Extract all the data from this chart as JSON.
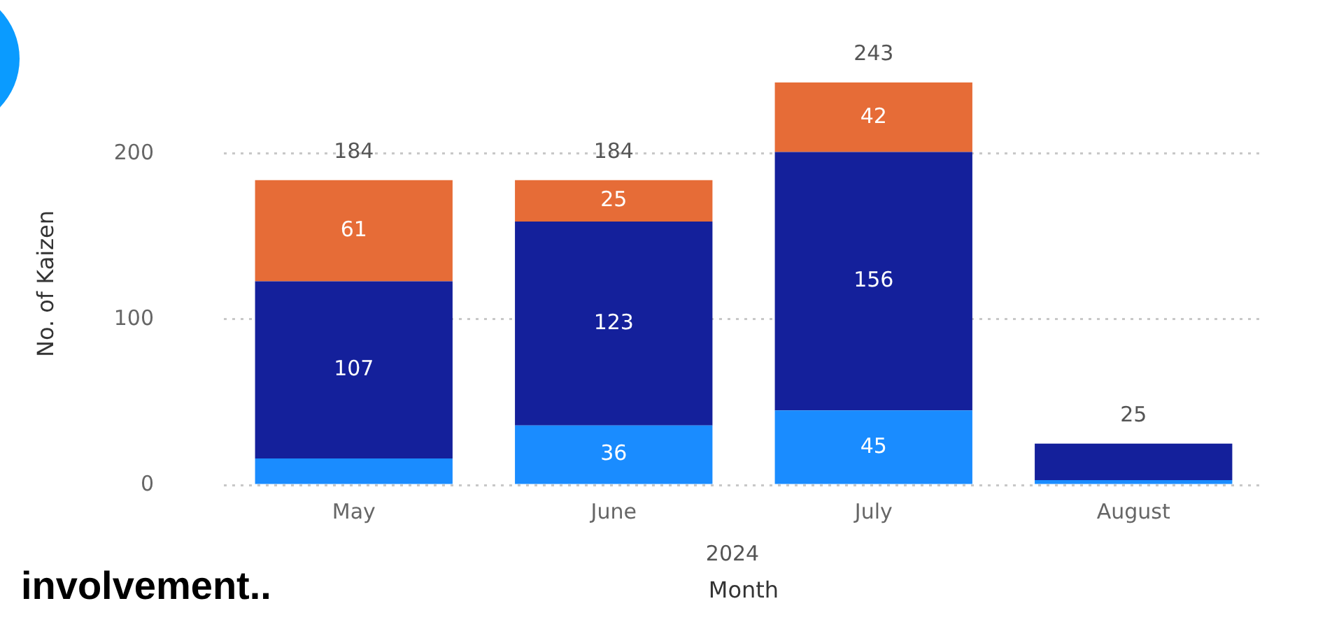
{
  "chart_data": {
    "type": "bar",
    "stacked": true,
    "ylabel": "No. of Kaizen",
    "xlabel": "Month",
    "categories": [
      "May",
      "June",
      "July",
      "August"
    ],
    "series": [
      {
        "color": "#1a8cff",
        "values": [
          16,
          36,
          45,
          3
        ],
        "value_labels": [
          null,
          "36",
          "45",
          null
        ]
      },
      {
        "color": "#14209b",
        "values": [
          107,
          123,
          156,
          22
        ],
        "value_labels": [
          "107",
          "123",
          "156",
          null
        ]
      },
      {
        "color": "#e66c37",
        "values": [
          61,
          25,
          42,
          null
        ],
        "value_labels": [
          "61",
          "25",
          "42",
          null
        ]
      }
    ],
    "totals": [
      "184",
      "184",
      "243",
      "25"
    ],
    "ylim": [
      0,
      243
    ],
    "yticks": [
      0,
      100,
      200
    ],
    "grid": "y",
    "legend": false,
    "annotations": [
      "2024",
      "involvement.."
    ]
  }
}
